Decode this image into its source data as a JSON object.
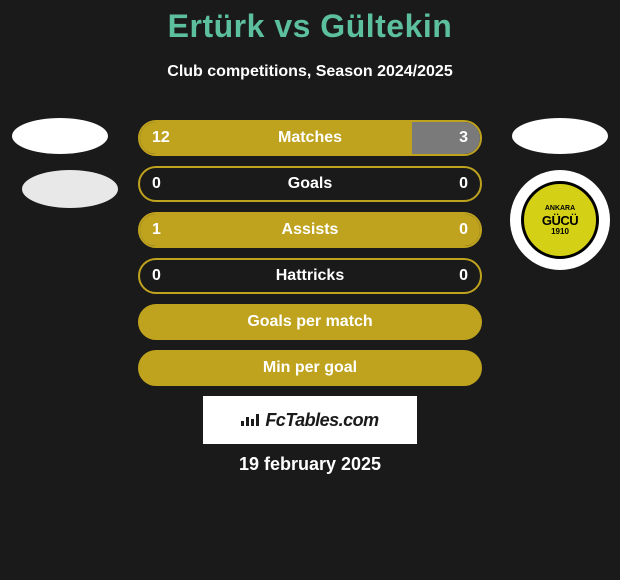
{
  "title": "Ertürk vs Gültekin",
  "subtitle": "Club competitions, Season 2024/2025",
  "date": "19 february 2025",
  "fctables_label": "FcTables.com",
  "logo": {
    "top": "ANKARA",
    "main": "GÜCÜ",
    "year": "1910"
  },
  "colors": {
    "background": "#1a1a1a",
    "title": "#5cbf9d",
    "bar_border": "#bfa31e",
    "bar_fill_left": "#bfa31e",
    "bar_fill_right": "#7a7a7a",
    "text": "#ffffff",
    "badge_bg": "#ffffff",
    "badge_text": "#1a1a1a"
  },
  "stats": [
    {
      "label": "Matches",
      "left_value": "12",
      "right_value": "3",
      "left_pct": 80,
      "right_pct": 20
    },
    {
      "label": "Goals",
      "left_value": "0",
      "right_value": "0",
      "left_pct": 0,
      "right_pct": 0
    },
    {
      "label": "Assists",
      "left_value": "1",
      "right_value": "0",
      "left_pct": 100,
      "right_pct": 0
    },
    {
      "label": "Hattricks",
      "left_value": "0",
      "right_value": "0",
      "left_pct": 0,
      "right_pct": 0
    },
    {
      "label": "Goals per match",
      "left_value": "",
      "right_value": "",
      "left_pct": 100,
      "right_pct": 0,
      "full": true
    },
    {
      "label": "Min per goal",
      "left_value": "",
      "right_value": "",
      "left_pct": 100,
      "right_pct": 0,
      "full": true
    }
  ]
}
